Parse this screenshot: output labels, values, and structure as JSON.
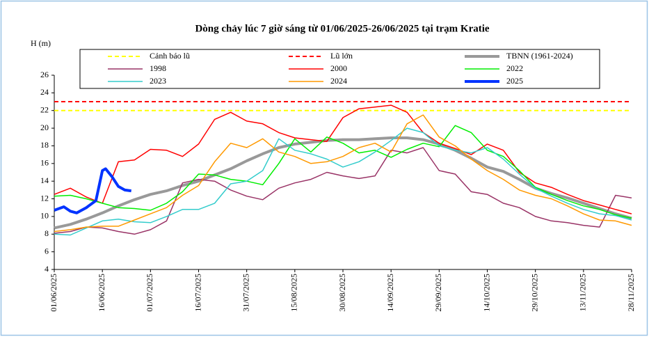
{
  "chart_data": {
    "type": "line",
    "title": "Dòng chảy lúc 7 giờ sáng từ 01/06/2025-26/06/2025 tại trạm Kratie",
    "y_label": "H (m)",
    "x": [
      "01/06/2025",
      "06/06/2025",
      "11/06/2025",
      "16/06/2025",
      "21/06/2025",
      "26/06/2025",
      "01/07/2025",
      "06/07/2025",
      "11/07/2025",
      "16/07/2025",
      "21/07/2025",
      "26/07/2025",
      "31/07/2025",
      "05/08/2025",
      "10/08/2025",
      "15/08/2025",
      "20/08/2025",
      "25/08/2025",
      "30/08/2025",
      "04/09/2025",
      "09/09/2025",
      "14/09/2025",
      "19/09/2025",
      "24/09/2025",
      "29/09/2025",
      "04/10/2025",
      "09/10/2025",
      "14/10/2025",
      "19/10/2025",
      "24/10/2025",
      "29/10/2025",
      "03/11/2025",
      "08/11/2025",
      "13/11/2025",
      "18/11/2025",
      "23/11/2025",
      "28/11/2025"
    ],
    "xlim": [
      "01/06/2025",
      "28/11/2025"
    ],
    "xticks": [
      "01/06/2025",
      "16/06/2025",
      "01/07/2025",
      "16/07/2025",
      "31/07/2025",
      "15/08/2025",
      "30/08/2025",
      "14/09/2025",
      "29/09/2025",
      "14/10/2025",
      "29/10/2025",
      "13/11/2025",
      "28/11/2025"
    ],
    "ylim": [
      4,
      26
    ],
    "yticks": [
      4,
      6,
      8,
      10,
      12,
      14,
      16,
      18,
      20,
      22,
      24,
      26
    ],
    "legend": "top",
    "series": [
      {
        "name": "Cảnh báo lũ",
        "color": "#ffff00",
        "dashed": true,
        "line_width": 2,
        "x": [
          "01/06/2025",
          "28/11/2025"
        ],
        "values": [
          22,
          22
        ]
      },
      {
        "name": "Lũ lớn",
        "color": "#ff0000",
        "dashed": true,
        "line_width": 2,
        "x": [
          "01/06/2025",
          "28/11/2025"
        ],
        "values": [
          23,
          23
        ]
      },
      {
        "name": "TBNN (1961-2024)",
        "color": "#999999",
        "line_width": 4,
        "values": [
          8.7,
          9.1,
          9.7,
          10.4,
          11.2,
          11.9,
          12.5,
          12.9,
          13.5,
          14.0,
          14.7,
          15.4,
          16.3,
          17.1,
          17.8,
          18.2,
          18.4,
          18.6,
          18.7,
          18.7,
          18.8,
          18.9,
          18.9,
          18.7,
          18.2,
          17.5,
          16.6,
          15.6,
          15.1,
          14.2,
          13.2,
          12.6,
          12.1,
          11.5,
          10.9,
          10.3,
          9.8
        ]
      },
      {
        "name": "1998",
        "color": "#993366",
        "line_width": 1.5,
        "values": [
          8.1,
          8.3,
          8.8,
          8.7,
          8.3,
          8.0,
          8.5,
          9.5,
          13.8,
          14.2,
          14.0,
          13.0,
          12.3,
          11.9,
          13.2,
          13.8,
          14.2,
          15.0,
          14.6,
          14.3,
          14.6,
          17.5,
          17.2,
          17.8,
          15.2,
          14.8,
          12.8,
          12.5,
          11.5,
          11.0,
          10.0,
          9.5,
          9.3,
          9.0,
          8.8,
          12.4,
          12.1
        ]
      },
      {
        "name": "2000",
        "color": "#ff0000",
        "line_width": 1.5,
        "values": [
          12.5,
          13.2,
          12.2,
          11.5,
          16.2,
          16.4,
          17.6,
          17.5,
          16.8,
          18.2,
          21.0,
          21.8,
          20.8,
          20.5,
          19.5,
          18.9,
          18.7,
          18.5,
          21.2,
          22.2,
          22.4,
          22.6,
          21.8,
          19.5,
          18.3,
          17.7,
          17.0,
          18.2,
          17.5,
          15.0,
          13.8,
          13.3,
          12.5,
          11.8,
          11.3,
          10.8,
          10.3
        ]
      },
      {
        "name": "2022",
        "color": "#00ee00",
        "line_width": 1.5,
        "values": [
          12.3,
          12.4,
          12.0,
          11.5,
          11.0,
          10.9,
          10.7,
          11.5,
          12.8,
          14.8,
          14.7,
          14.2,
          14.0,
          13.6,
          16.0,
          18.8,
          17.3,
          19.0,
          18.3,
          17.2,
          17.5,
          16.7,
          17.6,
          18.3,
          17.9,
          20.3,
          19.5,
          17.5,
          16.8,
          15.2,
          13.3,
          12.5,
          11.8,
          11.2,
          10.8,
          10.2,
          9.8
        ]
      },
      {
        "name": "2023",
        "color": "#33cccc",
        "line_width": 1.5,
        "values": [
          8.0,
          7.9,
          8.7,
          9.5,
          9.7,
          9.4,
          9.3,
          10.0,
          10.8,
          10.8,
          11.5,
          13.7,
          14.0,
          15.2,
          18.8,
          17.5,
          17.1,
          16.5,
          15.6,
          16.2,
          17.3,
          18.6,
          20.0,
          19.5,
          18.0,
          17.5,
          17.2,
          17.8,
          16.5,
          14.8,
          13.2,
          12.3,
          11.5,
          10.8,
          10.3,
          10.1,
          9.6
        ]
      },
      {
        "name": "2024",
        "color": "#ff9900",
        "line_width": 1.5,
        "values": [
          8.3,
          8.5,
          8.8,
          8.9,
          8.9,
          9.6,
          10.3,
          11.0,
          12.4,
          13.5,
          16.2,
          18.3,
          17.8,
          18.8,
          17.3,
          16.8,
          16.0,
          16.2,
          16.8,
          17.8,
          18.3,
          17.3,
          20.5,
          21.5,
          19.0,
          18.0,
          16.5,
          15.2,
          14.2,
          13.0,
          12.4,
          12.0,
          11.2,
          10.3,
          9.6,
          9.5,
          9.0
        ]
      },
      {
        "name": "2025",
        "color": "#0033ff",
        "line_width": 4,
        "x": [
          "01/06/2025",
          "04/06/2025",
          "06/06/2025",
          "08/06/2025",
          "11/06/2025",
          "14/06/2025",
          "16/06/2025",
          "17/06/2025",
          "19/06/2025",
          "21/06/2025",
          "23/06/2025",
          "25/06/2025"
        ],
        "values": [
          10.7,
          11.1,
          10.6,
          10.4,
          11.0,
          11.8,
          15.2,
          15.4,
          14.5,
          13.4,
          13.0,
          12.9
        ]
      }
    ]
  }
}
